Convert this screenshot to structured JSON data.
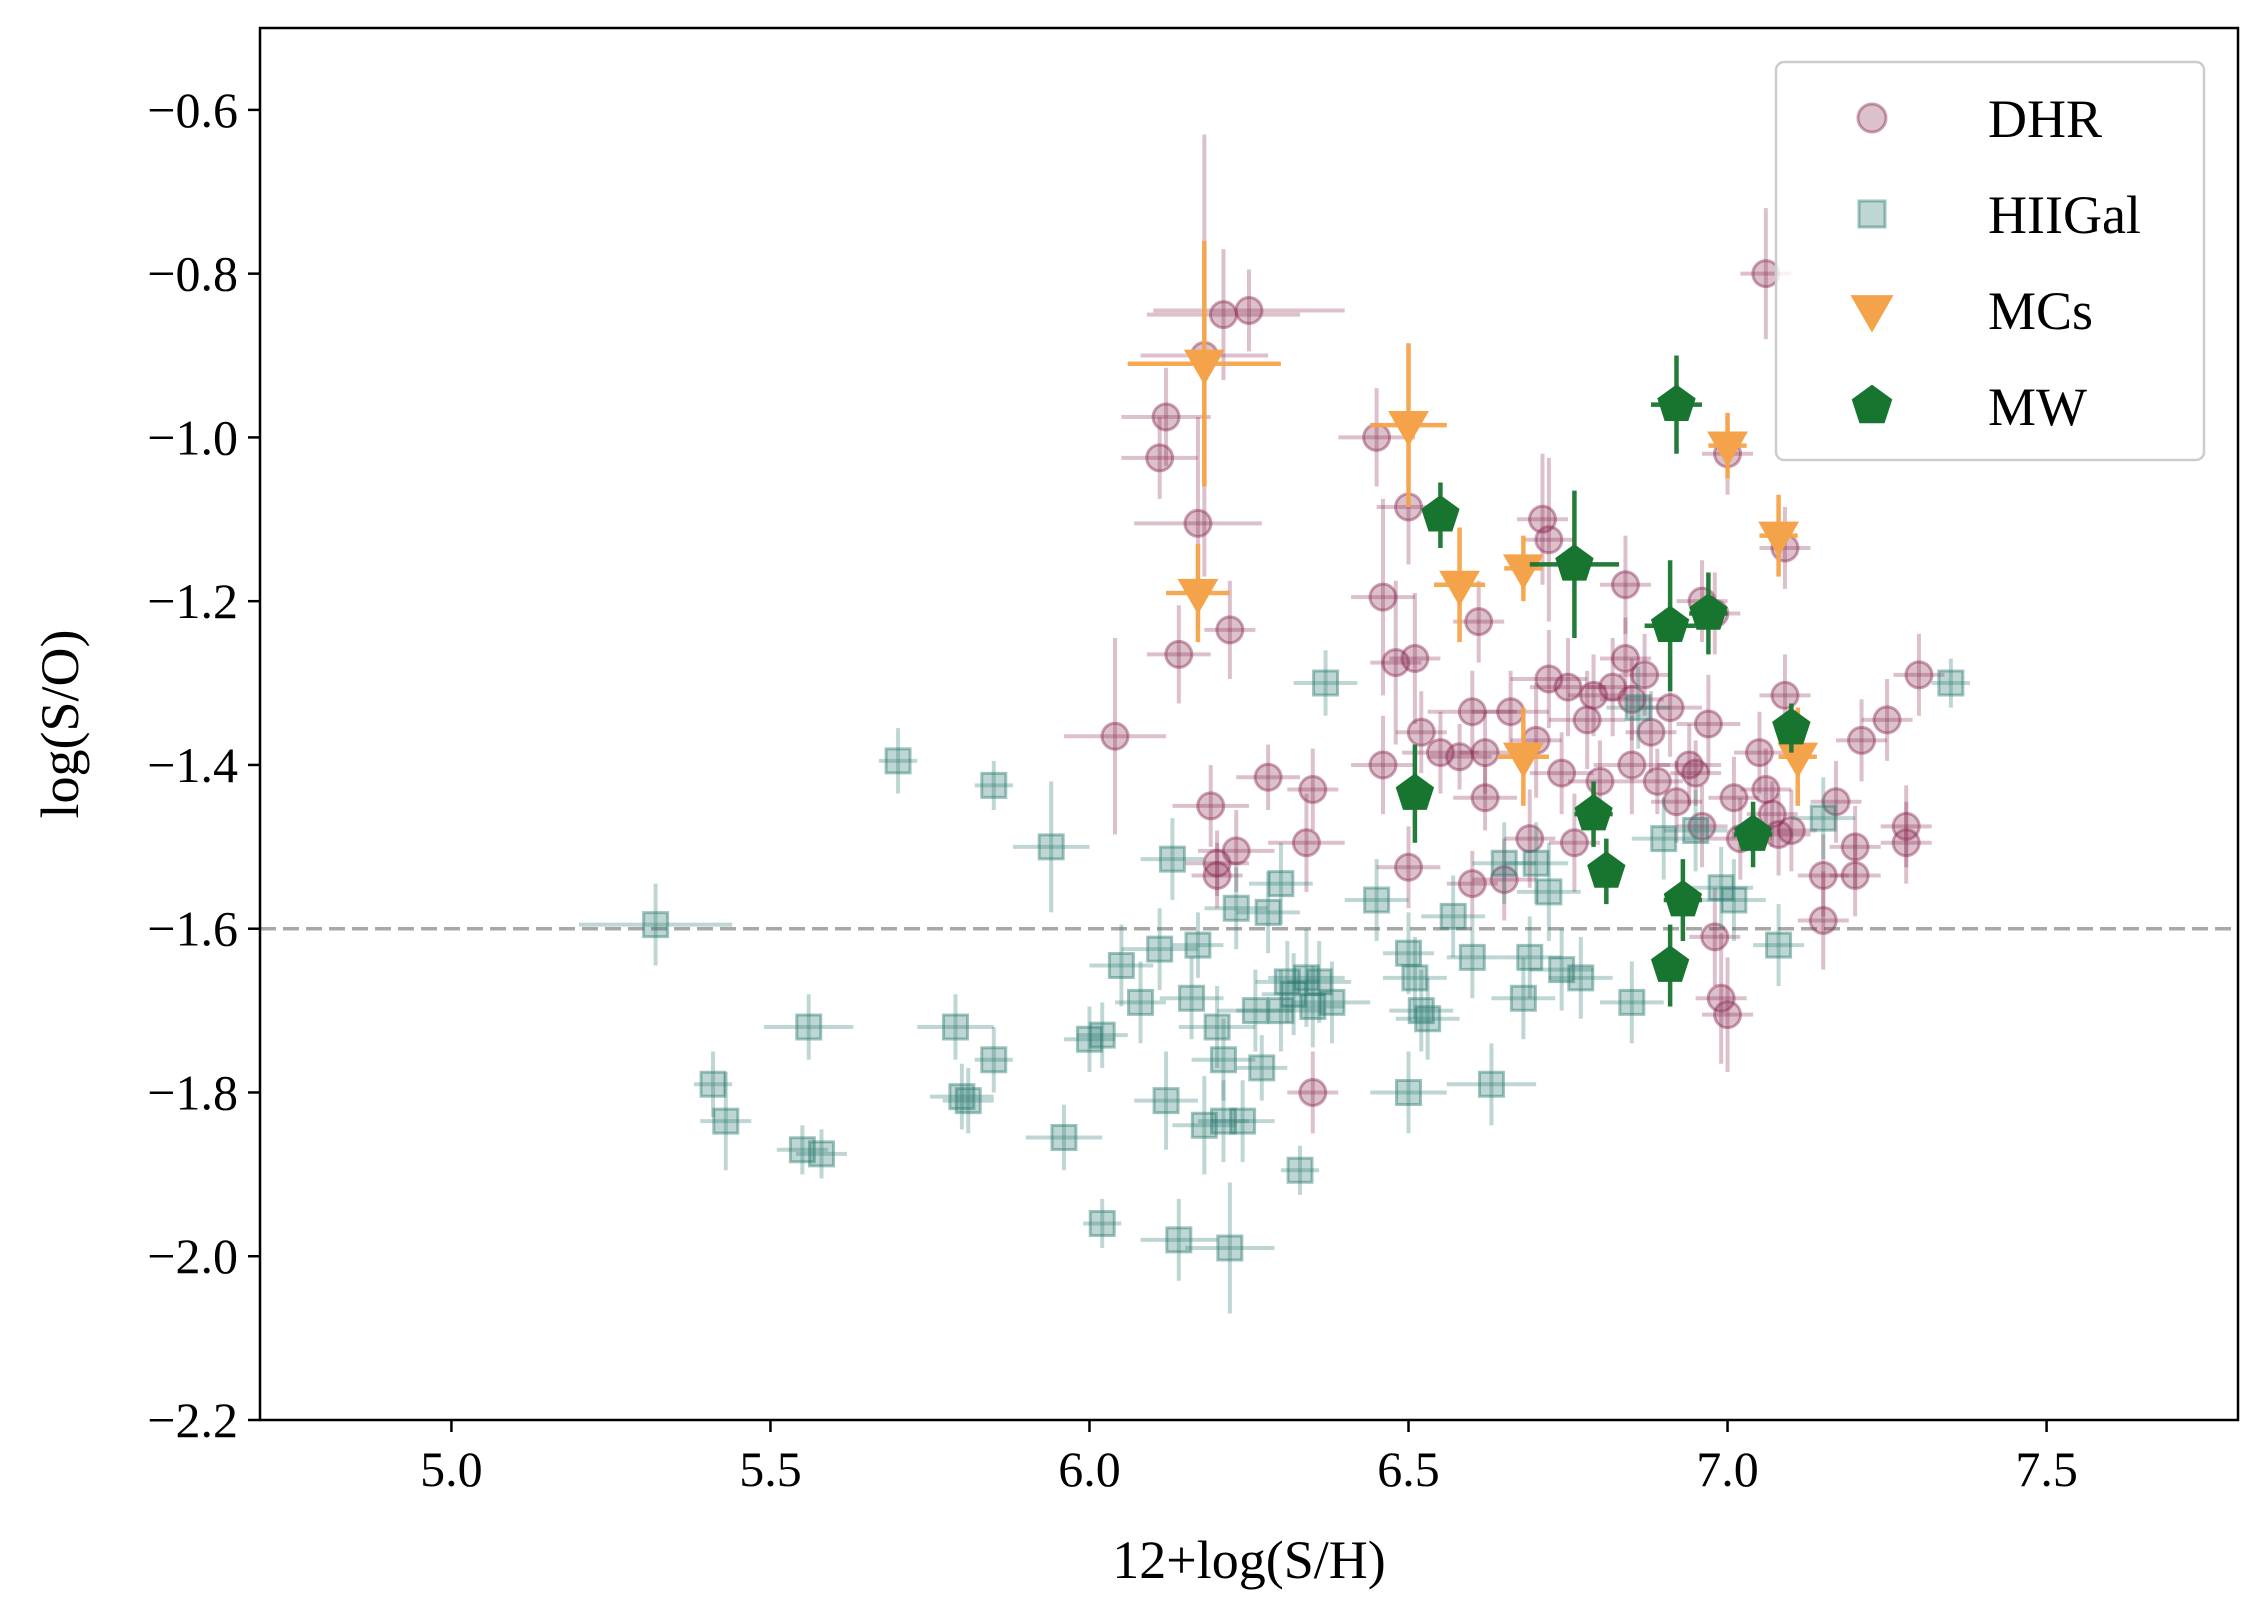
{
  "chart_data": {
    "type": "scatter",
    "title": "",
    "xlabel": "12+log(S/H)",
    "ylabel": "log(S/O)",
    "xlim": [
      4.7,
      7.8
    ],
    "ylim": [
      -2.2,
      -0.5
    ],
    "xticks": [
      5.0,
      5.5,
      6.0,
      6.5,
      7.0,
      7.5
    ],
    "xtick_labels": [
      "5.0",
      "5.5",
      "6.0",
      "6.5",
      "7.0",
      "7.5"
    ],
    "yticks": [
      -0.6,
      -0.8,
      -1.0,
      -1.2,
      -1.4,
      -1.6,
      -1.8,
      -2.0,
      -2.2
    ],
    "ytick_labels": [
      "−0.6",
      "−0.8",
      "−1.0",
      "−1.2",
      "−1.4",
      "−1.6",
      "−1.8",
      "−2.0",
      "−2.2"
    ],
    "reference_line": {
      "y": -1.6,
      "style": "dashed",
      "color": "#a8a8a8"
    },
    "legend_position": "top-right",
    "series": [
      {
        "name": "DHR",
        "marker": "circle",
        "color": "#8c2d55",
        "alpha": 0.3,
        "points": [
          [
            6.21,
            -0.85,
            0.12,
            0.08
          ],
          [
            6.25,
            -0.845,
            0.15,
            0.05
          ],
          [
            6.18,
            -0.9,
            0.1,
            0.27
          ],
          [
            6.12,
            -0.975,
            0.07,
            0.06
          ],
          [
            6.11,
            -1.025,
            0.06,
            0.05
          ],
          [
            6.17,
            -1.105,
            0.1,
            0.13
          ],
          [
            6.14,
            -1.265,
            0.05,
            0.06
          ],
          [
            6.22,
            -1.235,
            0.04,
            0.06
          ],
          [
            6.04,
            -1.365,
            0.08,
            0.12
          ],
          [
            6.19,
            -1.45,
            0.06,
            0.05
          ],
          [
            6.28,
            -1.415,
            0.05,
            0.04
          ],
          [
            6.35,
            -1.43,
            0.04,
            0.05
          ],
          [
            6.34,
            -1.495,
            0.06,
            0.06
          ],
          [
            6.23,
            -1.505,
            0.06,
            0.05
          ],
          [
            6.2,
            -1.52,
            0.05,
            0.04
          ],
          [
            6.2,
            -1.535,
            0.04,
            0.04
          ],
          [
            6.35,
            -1.8,
            0.04,
            0.05
          ],
          [
            6.45,
            -1.0,
            0.06,
            0.06
          ],
          [
            6.46,
            -1.195,
            0.05,
            0.12
          ],
          [
            6.48,
            -1.275,
            0.04,
            0.1
          ],
          [
            6.51,
            -1.27,
            0.04,
            0.08
          ],
          [
            6.5,
            -1.085,
            0.05,
            0.07
          ],
          [
            6.46,
            -1.4,
            0.05,
            0.06
          ],
          [
            6.52,
            -1.36,
            0.04,
            0.05
          ],
          [
            6.5,
            -1.525,
            0.05,
            0.05
          ],
          [
            6.55,
            -1.385,
            0.06,
            0.05
          ],
          [
            6.58,
            -1.39,
            0.05,
            0.04
          ],
          [
            6.61,
            -1.225,
            0.04,
            0.05
          ],
          [
            6.6,
            -1.335,
            0.07,
            0.05
          ],
          [
            6.62,
            -1.385,
            0.04,
            0.05
          ],
          [
            6.62,
            -1.44,
            0.05,
            0.04
          ],
          [
            6.6,
            -1.545,
            0.04,
            0.04
          ],
          [
            6.66,
            -1.335,
            0.06,
            0.05
          ],
          [
            6.65,
            -1.54,
            0.05,
            0.05
          ],
          [
            6.69,
            -1.49,
            0.04,
            0.06
          ],
          [
            6.71,
            -1.1,
            0.04,
            0.08
          ],
          [
            6.72,
            -1.125,
            0.04,
            0.1
          ],
          [
            6.72,
            -1.295,
            0.06,
            0.06
          ],
          [
            6.7,
            -1.37,
            0.04,
            0.07
          ],
          [
            6.75,
            -1.305,
            0.06,
            0.06
          ],
          [
            6.74,
            -1.41,
            0.05,
            0.05
          ],
          [
            6.76,
            -1.495,
            0.04,
            0.06
          ],
          [
            6.78,
            -1.345,
            0.06,
            0.06
          ],
          [
            6.79,
            -1.315,
            0.04,
            0.05
          ],
          [
            6.8,
            -1.42,
            0.05,
            0.05
          ],
          [
            6.82,
            -1.305,
            0.04,
            0.06
          ],
          [
            6.84,
            -1.18,
            0.04,
            0.06
          ],
          [
            6.84,
            -1.27,
            0.04,
            0.05
          ],
          [
            6.85,
            -1.32,
            0.05,
            0.05
          ],
          [
            6.85,
            -1.4,
            0.06,
            0.06
          ],
          [
            6.87,
            -1.29,
            0.04,
            0.05
          ],
          [
            6.88,
            -1.36,
            0.04,
            0.05
          ],
          [
            6.89,
            -1.42,
            0.04,
            0.04
          ],
          [
            6.91,
            -1.33,
            0.05,
            0.06
          ],
          [
            6.92,
            -1.445,
            0.04,
            0.05
          ],
          [
            6.94,
            -1.4,
            0.05,
            0.05
          ],
          [
            6.95,
            -1.41,
            0.04,
            0.04
          ],
          [
            6.96,
            -1.475,
            0.04,
            0.05
          ],
          [
            6.96,
            -1.2,
            0.04,
            0.05
          ],
          [
            6.97,
            -1.35,
            0.05,
            0.06
          ],
          [
            6.98,
            -1.215,
            0.04,
            0.05
          ],
          [
            6.98,
            -1.61,
            0.04,
            0.06
          ],
          [
            6.99,
            -1.685,
            0.04,
            0.08
          ],
          [
            7.0,
            -1.705,
            0.04,
            0.07
          ],
          [
            7.0,
            -1.02,
            0.04,
            0.05
          ],
          [
            7.01,
            -1.44,
            0.04,
            0.05
          ],
          [
            7.02,
            -1.49,
            0.05,
            0.05
          ],
          [
            7.05,
            -1.385,
            0.04,
            0.05
          ],
          [
            7.06,
            -1.43,
            0.04,
            0.05
          ],
          [
            7.07,
            -1.46,
            0.04,
            0.04
          ],
          [
            7.08,
            -1.485,
            0.05,
            0.05
          ],
          [
            7.09,
            -1.315,
            0.04,
            0.05
          ],
          [
            7.1,
            -1.48,
            0.04,
            0.05
          ],
          [
            7.06,
            -0.8,
            0.04,
            0.08
          ],
          [
            7.09,
            -1.135,
            0.04,
            0.05
          ],
          [
            7.15,
            -1.535,
            0.04,
            0.05
          ],
          [
            7.15,
            -1.59,
            0.04,
            0.06
          ],
          [
            7.17,
            -1.445,
            0.04,
            0.05
          ],
          [
            7.2,
            -1.5,
            0.04,
            0.05
          ],
          [
            7.2,
            -1.535,
            0.04,
            0.05
          ],
          [
            7.21,
            -1.37,
            0.04,
            0.05
          ],
          [
            7.25,
            -1.345,
            0.04,
            0.05
          ],
          [
            7.28,
            -1.475,
            0.04,
            0.05
          ],
          [
            7.28,
            -1.495,
            0.04,
            0.05
          ],
          [
            7.3,
            -1.29,
            0.04,
            0.05
          ]
        ]
      },
      {
        "name": "HIIGal",
        "marker": "square",
        "color": "#2b7a72",
        "alpha": 0.3,
        "points": [
          [
            5.32,
            -1.595,
            0.12,
            0.05
          ],
          [
            5.41,
            -1.79,
            0.03,
            0.04
          ],
          [
            5.43,
            -1.835,
            0.04,
            0.06
          ],
          [
            5.55,
            -1.87,
            0.04,
            0.03
          ],
          [
            5.56,
            -1.72,
            0.07,
            0.04
          ],
          [
            5.58,
            -1.875,
            0.04,
            0.03
          ],
          [
            5.7,
            -1.395,
            0.03,
            0.04
          ],
          [
            5.79,
            -1.72,
            0.06,
            0.04
          ],
          [
            5.8,
            -1.805,
            0.05,
            0.04
          ],
          [
            5.81,
            -1.81,
            0.04,
            0.04
          ],
          [
            5.85,
            -1.425,
            0.03,
            0.03
          ],
          [
            5.85,
            -1.76,
            0.03,
            0.04
          ],
          [
            5.94,
            -1.5,
            0.06,
            0.08
          ],
          [
            5.96,
            -1.855,
            0.06,
            0.04
          ],
          [
            6.0,
            -1.735,
            0.04,
            0.04
          ],
          [
            6.02,
            -1.73,
            0.04,
            0.04
          ],
          [
            6.02,
            -1.96,
            0.03,
            0.03
          ],
          [
            6.05,
            -1.645,
            0.05,
            0.05
          ],
          [
            6.08,
            -1.69,
            0.04,
            0.05
          ],
          [
            6.11,
            -1.625,
            0.06,
            0.05
          ],
          [
            6.12,
            -1.81,
            0.05,
            0.06
          ],
          [
            6.13,
            -1.515,
            0.05,
            0.05
          ],
          [
            6.14,
            -1.98,
            0.06,
            0.05
          ],
          [
            6.16,
            -1.685,
            0.05,
            0.05
          ],
          [
            6.17,
            -1.62,
            0.04,
            0.04
          ],
          [
            6.18,
            -1.84,
            0.05,
            0.06
          ],
          [
            6.2,
            -1.72,
            0.06,
            0.05
          ],
          [
            6.21,
            -1.76,
            0.05,
            0.05
          ],
          [
            6.21,
            -1.835,
            0.04,
            0.05
          ],
          [
            6.22,
            -1.99,
            0.07,
            0.08
          ],
          [
            6.23,
            -1.575,
            0.05,
            0.05
          ],
          [
            6.24,
            -1.835,
            0.05,
            0.05
          ],
          [
            6.26,
            -1.7,
            0.06,
            0.05
          ],
          [
            6.27,
            -1.77,
            0.04,
            0.04
          ],
          [
            6.28,
            -1.58,
            0.05,
            0.05
          ],
          [
            6.3,
            -1.545,
            0.05,
            0.05
          ],
          [
            6.3,
            -1.7,
            0.07,
            0.05
          ],
          [
            6.31,
            -1.665,
            0.05,
            0.05
          ],
          [
            6.32,
            -1.68,
            0.05,
            0.05
          ],
          [
            6.33,
            -1.895,
            0.03,
            0.03
          ],
          [
            6.34,
            -1.66,
            0.06,
            0.06
          ],
          [
            6.35,
            -1.695,
            0.05,
            0.05
          ],
          [
            6.36,
            -1.665,
            0.05,
            0.05
          ],
          [
            6.37,
            -1.3,
            0.05,
            0.04
          ],
          [
            6.38,
            -1.69,
            0.06,
            0.05
          ],
          [
            6.45,
            -1.565,
            0.05,
            0.05
          ],
          [
            6.5,
            -1.63,
            0.04,
            0.05
          ],
          [
            6.5,
            -1.8,
            0.06,
            0.05
          ],
          [
            6.51,
            -1.66,
            0.05,
            0.05
          ],
          [
            6.52,
            -1.7,
            0.05,
            0.05
          ],
          [
            6.53,
            -1.71,
            0.05,
            0.05
          ],
          [
            6.57,
            -1.585,
            0.05,
            0.05
          ],
          [
            6.6,
            -1.635,
            0.04,
            0.05
          ],
          [
            6.63,
            -1.79,
            0.07,
            0.05
          ],
          [
            6.65,
            -1.52,
            0.05,
            0.05
          ],
          [
            6.68,
            -1.685,
            0.05,
            0.05
          ],
          [
            6.69,
            -1.635,
            0.05,
            0.05
          ],
          [
            6.7,
            -1.52,
            0.05,
            0.05
          ],
          [
            6.72,
            -1.555,
            0.05,
            0.06
          ],
          [
            6.74,
            -1.65,
            0.05,
            0.05
          ],
          [
            6.77,
            -1.66,
            0.05,
            0.05
          ],
          [
            6.85,
            -1.69,
            0.05,
            0.05
          ],
          [
            6.86,
            -1.33,
            0.05,
            0.05
          ],
          [
            6.9,
            -1.49,
            0.05,
            0.05
          ],
          [
            6.95,
            -1.48,
            0.05,
            0.05
          ],
          [
            6.99,
            -1.55,
            0.05,
            0.05
          ],
          [
            7.01,
            -1.565,
            0.05,
            0.05
          ],
          [
            7.08,
            -1.62,
            0.04,
            0.05
          ],
          [
            7.15,
            -1.465,
            0.05,
            0.05
          ],
          [
            7.35,
            -1.3,
            0.03,
            0.03
          ]
        ]
      },
      {
        "name": "MCs",
        "marker": "triangle-down",
        "color": "#f5a34a",
        "alpha": 1.0,
        "points": [
          [
            6.18,
            -0.91,
            0.12,
            0.15
          ],
          [
            6.17,
            -1.19,
            0.05,
            0.06
          ],
          [
            6.5,
            -0.985,
            0.06,
            0.1
          ],
          [
            6.58,
            -1.18,
            0.04,
            0.07
          ],
          [
            6.68,
            -1.16,
            0.03,
            0.04
          ],
          [
            6.68,
            -1.39,
            0.04,
            0.06
          ],
          [
            7.0,
            -1.01,
            0.03,
            0.04
          ],
          [
            7.08,
            -1.12,
            0.03,
            0.05
          ],
          [
            7.11,
            -1.39,
            0.03,
            0.06
          ]
        ]
      },
      {
        "name": "MW",
        "marker": "pentagon",
        "color": "#187530",
        "alpha": 1.0,
        "points": [
          [
            6.92,
            -0.96,
            0.04,
            0.06
          ],
          [
            6.55,
            -1.095,
            0.02,
            0.04
          ],
          [
            6.76,
            -1.155,
            0.07,
            0.09
          ],
          [
            6.91,
            -1.23,
            0.04,
            0.08
          ],
          [
            6.97,
            -1.215,
            0.03,
            0.05
          ],
          [
            6.51,
            -1.435,
            0.02,
            0.06
          ],
          [
            6.79,
            -1.46,
            0.03,
            0.04
          ],
          [
            6.81,
            -1.53,
            0.02,
            0.04
          ],
          [
            6.93,
            -1.565,
            0.03,
            0.05
          ],
          [
            6.91,
            -1.645,
            0.02,
            0.05
          ],
          [
            7.04,
            -1.485,
            0.03,
            0.04
          ],
          [
            7.1,
            -1.355,
            0.02,
            0.03
          ]
        ]
      }
    ]
  }
}
